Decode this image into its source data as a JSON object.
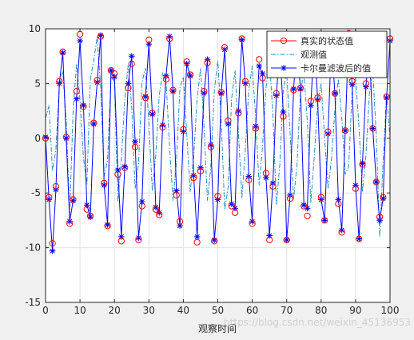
{
  "chart_data": {
    "type": "line",
    "title": "",
    "xlabel": "观察时间",
    "ylabel": "",
    "xlim": [
      0,
      100
    ],
    "ylim": [
      -15,
      10
    ],
    "xticks": [
      0,
      10,
      20,
      30,
      40,
      50,
      60,
      70,
      80,
      90,
      100
    ],
    "yticks": [
      -15,
      -10,
      -5,
      0,
      5,
      10
    ],
    "grid": true,
    "legend_position": "top-right",
    "watermark": "https://blog.csdn.net/weixin_45136953",
    "series": [
      {
        "name": "真实的状态值",
        "color": "#ff0000",
        "line": "none",
        "marker": "circle",
        "x": [
          0,
          1,
          2,
          3,
          4,
          5,
          6,
          7,
          8,
          9,
          10,
          11,
          12,
          13,
          14,
          15,
          16,
          17,
          18,
          19,
          20,
          21,
          22,
          23,
          24,
          25,
          26,
          27,
          28,
          29,
          30,
          31,
          32,
          33,
          34,
          35,
          36,
          37,
          38,
          39,
          40,
          41,
          42,
          43,
          44,
          45,
          46,
          47,
          48,
          49,
          50,
          51,
          52,
          53,
          54,
          55,
          56,
          57,
          58,
          59,
          60,
          61,
          62,
          63,
          64,
          65,
          66,
          67,
          68,
          69,
          70,
          71,
          72,
          73,
          74,
          75,
          76,
          77,
          78,
          79,
          80,
          81,
          82,
          83,
          84,
          85,
          86,
          87,
          88,
          89,
          90,
          91,
          92,
          93,
          94,
          95,
          96,
          97,
          98,
          99,
          100
        ],
        "values": [
          0,
          -5.4,
          -9.6,
          -4.4,
          5.2,
          7.9,
          0.1,
          -7.8,
          -5.6,
          4.3,
          9.5,
          2.9,
          -6.5,
          -7.1,
          1.4,
          5.3,
          9.3,
          -4.1,
          -8.0,
          6.2,
          5.9,
          -3.3,
          -9.4,
          -2.7,
          4.6,
          6.8,
          -0.8,
          -9.3,
          -6.2,
          3.7,
          9.0,
          2.3,
          -6.5,
          -7.0,
          1.0,
          5.4,
          9.1,
          4.4,
          -5.2,
          -7.6,
          0.8,
          7.0,
          5.8,
          -3.6,
          -9.5,
          -3.0,
          4.3,
          6.9,
          -0.8,
          -9.4,
          -5.3,
          4.2,
          8.3,
          1.6,
          -6.2,
          -6.8,
          2.3,
          9.1,
          5.2,
          -3.8,
          -7.8,
          0.9,
          7.2,
          5.5,
          -3.2,
          -9.3,
          -4.4,
          4.1,
          8.3,
          2.0,
          -9.3,
          -5.5,
          4.4,
          9.0,
          4.6,
          -6.2,
          -7.1,
          3.4,
          9.3,
          3.7,
          -5.4,
          -7.5,
          0.6,
          9.2,
          4.1,
          -6.0,
          -8.6,
          0.7,
          9.6,
          5.2,
          -4.6,
          -9.2,
          -2.4,
          5.0,
          8.1,
          0.9,
          -4.0,
          -7.2,
          -5.4,
          3.8,
          9.1
        ]
      },
      {
        "name": "观测值",
        "color": "#2a8fc0",
        "line": "dashdot",
        "marker": "none",
        "x": [
          0,
          1,
          2,
          3,
          4,
          5,
          6,
          7,
          8,
          9,
          10,
          11,
          12,
          13,
          14,
          15,
          16,
          17,
          18,
          19,
          20,
          21,
          22,
          23,
          24,
          25,
          26,
          27,
          28,
          29,
          30,
          31,
          32,
          33,
          34,
          35,
          36,
          37,
          38,
          39,
          40,
          41,
          42,
          43,
          44,
          45,
          46,
          47,
          48,
          49,
          50,
          51,
          52,
          53,
          54,
          55,
          56,
          57,
          58,
          59,
          60,
          61,
          62,
          63,
          64,
          65,
          66,
          67,
          68,
          69,
          70,
          71,
          72,
          73,
          74,
          75,
          76,
          77,
          78,
          79,
          80,
          81,
          82,
          83,
          84,
          85,
          86,
          87,
          88,
          89,
          90,
          91,
          92,
          93,
          94,
          95,
          96,
          97,
          98,
          99,
          100
        ],
        "values": [
          1.8,
          3.0,
          -3.0,
          -1.0,
          4.8,
          6.1,
          1.6,
          -7.0,
          2.5,
          6.8,
          3.5,
          -1.8,
          -4.2,
          5.4,
          7.1,
          9.3,
          4.6,
          -3.5,
          -2.0,
          5.6,
          5.2,
          -5.8,
          -1.9,
          3.6,
          6.7,
          2.9,
          -4.6,
          -2.3,
          5.1,
          6.4,
          1.3,
          -4.8,
          -1.5,
          3.9,
          6.0,
          5.1,
          -0.8,
          -5.7,
          -2.1,
          4.6,
          5.6,
          0.3,
          -4.9,
          -1.7,
          3.6,
          6.4,
          1.1,
          -5.7,
          -2.5,
          4.4,
          7.1,
          1.6,
          -6.5,
          -4.5,
          3.6,
          6.2,
          0.5,
          -5.5,
          -1.0,
          4.4,
          6.6,
          1.9,
          -4.3,
          -0.7,
          4.6,
          7.2,
          2.2,
          -6.1,
          -2.4,
          4.3,
          6.1,
          0.4,
          -5.6,
          -2.4,
          4.3,
          6.0,
          1.5,
          -5.9,
          -1.7,
          3.3,
          5.0,
          0.1,
          -4.6,
          -1.9,
          2.6,
          5.4,
          1.8,
          -3.3,
          -2.6,
          4.4,
          5.6,
          1.0,
          -4.9,
          -1.6,
          4.0,
          6.1,
          0.4,
          -9.0,
          -2.1,
          4.1,
          -0.1
        ]
      },
      {
        "name": "卡尔曼滤波后的值",
        "color": "#0000ff",
        "line": "solid",
        "marker": "star",
        "x": [
          0,
          1,
          2,
          3,
          4,
          5,
          6,
          7,
          8,
          9,
          10,
          11,
          12,
          13,
          14,
          15,
          16,
          17,
          18,
          19,
          20,
          21,
          22,
          23,
          24,
          25,
          26,
          27,
          28,
          29,
          30,
          31,
          32,
          33,
          34,
          35,
          36,
          37,
          38,
          39,
          40,
          41,
          42,
          43,
          44,
          45,
          46,
          47,
          48,
          49,
          50,
          51,
          52,
          53,
          54,
          55,
          56,
          57,
          58,
          59,
          60,
          61,
          62,
          63,
          64,
          65,
          66,
          67,
          68,
          69,
          70,
          71,
          72,
          73,
          74,
          75,
          76,
          77,
          78,
          79,
          80,
          81,
          82,
          83,
          84,
          85,
          86,
          87,
          88,
          89,
          90,
          91,
          92,
          93,
          94,
          95,
          96,
          97,
          98,
          99,
          100
        ],
        "values": [
          0.1,
          -5.6,
          -10.3,
          -4.7,
          5.0,
          7.8,
          0.0,
          -7.6,
          -5.7,
          3.6,
          8.9,
          3.0,
          -6.1,
          -7.2,
          1.3,
          5.1,
          9.4,
          -4.3,
          -7.9,
          6.2,
          5.6,
          -2.9,
          -9.0,
          -2.6,
          5.0,
          7.5,
          -0.3,
          -9.1,
          -5.8,
          3.8,
          8.6,
          2.2,
          -6.3,
          -6.8,
          1.2,
          5.7,
          9.3,
          4.3,
          -4.8,
          -8.0,
          0.6,
          6.8,
          5.7,
          -3.4,
          -9.0,
          -2.7,
          4.1,
          7.2,
          -0.6,
          -9.3,
          -5.6,
          4.1,
          8.1,
          1.3,
          -6.0,
          -6.4,
          2.5,
          9.0,
          5.0,
          -3.5,
          -7.6,
          1.1,
          6.6,
          5.9,
          -3.6,
          -8.9,
          -4.1,
          3.9,
          8.4,
          2.4,
          -9.3,
          -5.2,
          4.5,
          8.8,
          4.5,
          -6.1,
          -6.4,
          3.0,
          9.0,
          3.5,
          -5.6,
          -7.5,
          0.4,
          8.9,
          4.1,
          -5.6,
          -8.4,
          0.7,
          9.5,
          4.9,
          -4.3,
          -9.2,
          -2.3,
          4.7,
          8.2,
          0.9,
          -4.0,
          -7.5,
          -5.5,
          3.7,
          8.9
        ]
      }
    ]
  }
}
